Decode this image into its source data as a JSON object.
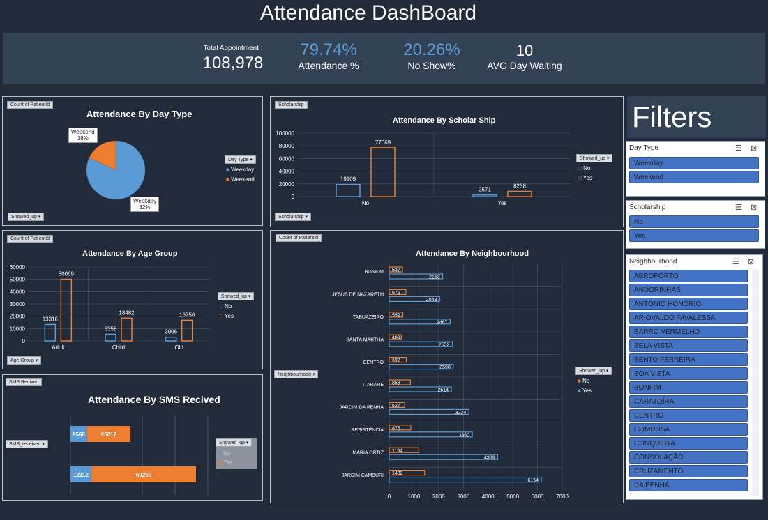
{
  "title": "Attendance DashBoard",
  "kpis": {
    "total_label": "Total Appointment :",
    "total_value": "108,978",
    "attendance_value": "79.74%",
    "attendance_label": "Attendance %",
    "noshow_value": "20.26%",
    "noshow_label": "No Show%",
    "wait_value": "10",
    "wait_label": "AVG Day Waiting"
  },
  "colors": {
    "accent": "#5b9bd5",
    "orange": "#ed7d31",
    "panel": "#222b3a",
    "kpi_bg": "#334155",
    "slicer_item": "#4472c4"
  },
  "day_type": {
    "tag": "Count of PatientId",
    "title": "Attendance By Day Type",
    "filter_dd": "Showed_up",
    "legend_dd": "Day Type",
    "legend": [
      "Weekday",
      "Weekend"
    ],
    "label_weekend": "Weekend",
    "label_weekend_pct": "18%",
    "label_weekday": "Weekday",
    "label_weekday_pct": "82%"
  },
  "scholarship": {
    "tag": "Scholarship",
    "title": "Attendance By Scholar Ship",
    "axis_dd": "Scholarship",
    "legend_dd": "Showed_up",
    "legend": [
      "No",
      "Yes"
    ]
  },
  "age": {
    "tag": "Count of PatientId",
    "title": "Attendance By Age Group",
    "axis_dd": "Age Group",
    "legend_dd": "Showed_up",
    "legend": [
      "No",
      "Yes"
    ]
  },
  "sms": {
    "tag": "SMS Recived",
    "title": "Attendance By SMS Recived",
    "axis_dd": "SMS_received",
    "legend_dd": "Showed_up",
    "legend": [
      "No",
      "Yes"
    ]
  },
  "neigh": {
    "tag": "Count of PatientId",
    "title": "Attendance By Neighbourhood",
    "axis_dd": "Neighbourhood",
    "legend_dd": "Showed_up",
    "legend": [
      "No",
      "Yes"
    ]
  },
  "filters": {
    "title": "Filters",
    "day_type": {
      "header": "Day Type",
      "items": [
        "Weekday",
        "Weekend"
      ]
    },
    "scholarship": {
      "header": "Scholarship",
      "items": [
        "No",
        "Yes"
      ]
    },
    "neighbourhood": {
      "header": "Neighbourhood",
      "items": [
        "AEROPORTO",
        "ANDORINHAS",
        "ANTÔNIO HONÓRIO",
        "ARIOVALDO FAVALESSA",
        "BARRO VERMELHO",
        "BELA VISTA",
        "BENTO FERREIRA",
        "BOA VISTA",
        "BONFIM",
        "CARATOÍRA",
        "CENTRO",
        "COMDUSA",
        "CONQUISTA",
        "CONSOLAÇÃO",
        "CRUZAMENTO",
        "DA PENHA"
      ]
    }
  },
  "chart_data": [
    {
      "type": "pie",
      "title": "Attendance By Day Type",
      "categories": [
        "Weekday",
        "Weekend"
      ],
      "values": [
        82,
        18
      ],
      "labels": [
        "82%",
        "18%"
      ]
    },
    {
      "type": "bar",
      "title": "Attendance By Scholar Ship",
      "categories": [
        "No",
        "Yes"
      ],
      "series": [
        {
          "name": "No",
          "values": [
            19109,
            2571
          ]
        },
        {
          "name": "Yes",
          "values": [
            77069,
            8238
          ]
        }
      ],
      "ylim": [
        0,
        100000
      ],
      "yticks": [
        0,
        20000,
        40000,
        60000,
        80000,
        100000
      ]
    },
    {
      "type": "bar",
      "title": "Attendance By Age Group",
      "categories": [
        "Adult",
        "Child",
        "Old"
      ],
      "series": [
        {
          "name": "No",
          "values": [
            13316,
            5358,
            3006
          ]
        },
        {
          "name": "Yes",
          "values": [
            50069,
            18482,
            16756
          ]
        }
      ],
      "ylim": [
        0,
        60000
      ],
      "yticks": [
        0,
        10000,
        20000,
        30000,
        40000,
        50000,
        60000
      ]
    },
    {
      "type": "bar",
      "orientation": "horizontal",
      "stacked": true,
      "title": "Attendance By SMS Recived",
      "categories": [
        "0",
        "1"
      ],
      "series": [
        {
          "name": "No",
          "values": [
            9568,
            12112
          ]
        },
        {
          "name": "Yes",
          "values": [
            25017,
            60290
          ]
        }
      ]
    },
    {
      "type": "bar",
      "orientation": "horizontal",
      "title": "Attendance By Neighbourhood",
      "categories": [
        "BONFIM",
        "JESUS DE NAZARETH",
        "TABUAZEIRO",
        "SANTA MARTHA",
        "CENTRO",
        "ITARARÉ",
        "JARDIM DA PENHA",
        "RESISTÊNCIA",
        "MARIA ORTIZ",
        "JARDIM CAMBURI"
      ],
      "series": [
        {
          "name": "No",
          "values": [
            537,
            676,
            552,
            489,
            692,
            858,
            627,
            875,
            1194,
            1432
          ]
        },
        {
          "name": "Yes",
          "values": [
            2163,
            2043,
            2467,
            2552,
            2590,
            2514,
            3224,
            3360,
            4389,
            6154
          ]
        }
      ],
      "xlim": [
        0,
        7000
      ],
      "xticks": [
        0,
        1000,
        2000,
        3000,
        4000,
        5000,
        6000,
        7000
      ]
    }
  ]
}
